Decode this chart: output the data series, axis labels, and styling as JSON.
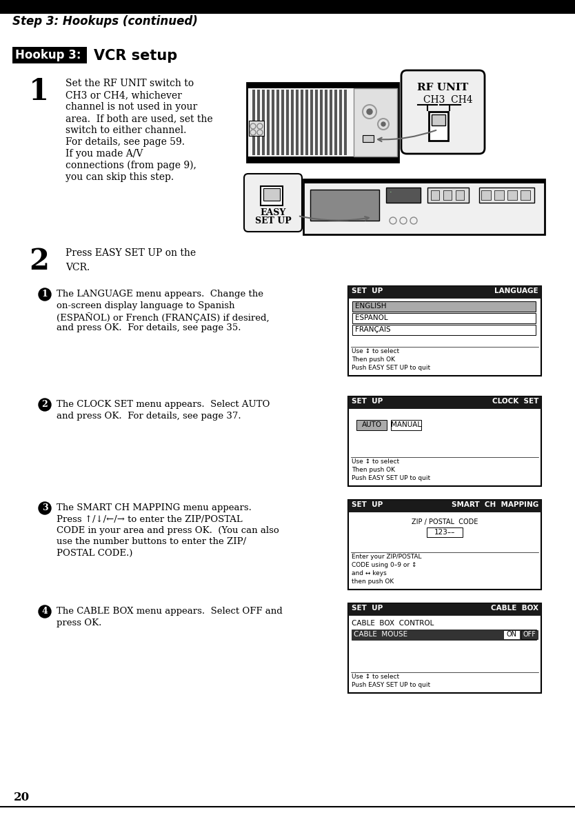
{
  "page_number": "20",
  "header_text": "Step 3: Hookups (continued)",
  "hookup_label": "Hookup 3:",
  "hookup_title": "VCR setup",
  "step1_text_lines": [
    "Set the RF UNIT switch to",
    "CH3 or CH4, whichever",
    "channel is not used in your",
    "area.  If both are used, set the",
    "switch to either channel.",
    "For details, see page 59.",
    "If you made A/V",
    "connections (from page 9),",
    "you can skip this step."
  ],
  "step2_text": "Press EASY SET UP on the\nVCR.",
  "sub_steps": [
    {
      "num": "1",
      "text_lines": [
        "The LANGUAGE menu appears.  Change the",
        "on-screen display language to Spanish",
        "(ESPAÑOL) or French (FRANÇAIS) if desired,",
        "and press OK.  For details, see page 35."
      ],
      "screen_title_left": "SET  UP",
      "screen_title_right": "LANGUAGE",
      "screen_items": [
        "ENGLISH",
        "ESPAÑOL",
        "FRANÇAIS"
      ],
      "screen_selected": 0,
      "screen_bottom": [
        "Use ↕ to select",
        "Then push OK",
        "Push EASY SET UP to quit"
      ]
    },
    {
      "num": "2",
      "text_lines": [
        "The CLOCK SET menu appears.  Select AUTO",
        "and press OK.  For details, see page 37."
      ],
      "screen_title_left": "SET  UP",
      "screen_title_right": "CLOCK  SET",
      "clock_items": [
        "AUTO",
        "MANUAL"
      ],
      "screen_bottom": [
        "Use ↕ to select",
        "Then push OK",
        "Push EASY SET UP to quit"
      ]
    },
    {
      "num": "3",
      "text_lines": [
        "The SMART CH MAPPING menu appears.",
        "Press ↑/↓/←/→ to enter the ZIP/POSTAL",
        "CODE in your area and press OK.  (You can also",
        "use the number buttons to enter the ZIP/",
        "POSTAL CODE.)"
      ],
      "screen_title_left": "SET  UP",
      "screen_title_right": "SMART  CH  MAPPING",
      "screen_zip_label": "ZIP / POSTAL  CODE",
      "screen_zip_value": "123––",
      "screen_bottom": [
        "Enter your ZIP/POSTAL",
        "CODE using 0–9 or ↕",
        "and ↔ keys",
        "then push OK"
      ]
    },
    {
      "num": "4",
      "text_lines": [
        "The CABLE BOX menu appears.  Select OFF and",
        "press OK."
      ],
      "screen_title_left": "SET  UP",
      "screen_title_right": "CABLE  BOX",
      "screen_cable_label": "CABLE  BOX  CONTROL",
      "screen_cable_item": "CABLE  MOUSE",
      "screen_on_off": [
        "ON",
        "OFF"
      ],
      "screen_bottom": [
        "Use ↕ to select",
        "Push EASY SET UP to quit"
      ]
    }
  ],
  "bg_color": "#ffffff",
  "text_color": "#000000"
}
